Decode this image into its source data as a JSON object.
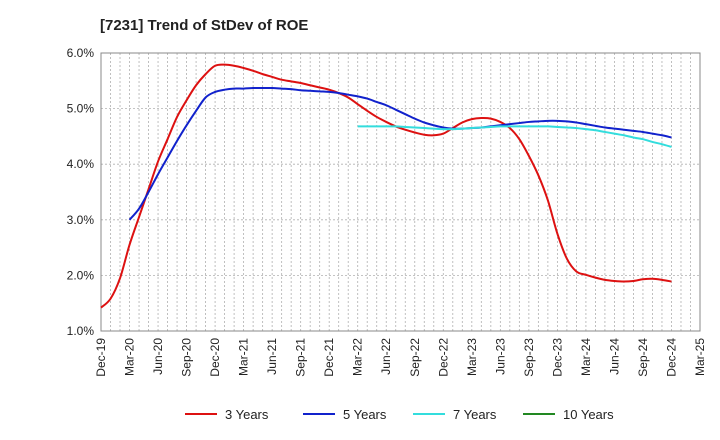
{
  "chart_data": {
    "type": "line",
    "title": "[7231]  Trend of StDev of ROE",
    "xlabel": "",
    "ylabel": "",
    "ylim": [
      1.0,
      6.0
    ],
    "y_ticks": [
      "1.0%",
      "2.0%",
      "3.0%",
      "4.0%",
      "5.0%",
      "6.0%"
    ],
    "y_tick_values": [
      1.0,
      2.0,
      3.0,
      4.0,
      5.0,
      6.0
    ],
    "x_ticks": [
      "Dec-19",
      "Mar-20",
      "Jun-20",
      "Sep-20",
      "Dec-20",
      "Mar-21",
      "Jun-21",
      "Sep-21",
      "Dec-21",
      "Mar-22",
      "Jun-22",
      "Sep-22",
      "Dec-22",
      "Mar-23",
      "Jun-23",
      "Sep-23",
      "Dec-23",
      "Mar-24",
      "Jun-24",
      "Sep-24",
      "Dec-24",
      "Mar-25"
    ],
    "grid": true,
    "legend_position": "bottom",
    "series": [
      {
        "name": "3 Years",
        "color": "#dd1111",
        "x": [
          "Dec-19",
          "Jan-20",
          "Feb-20",
          "Mar-20",
          "Apr-20",
          "May-20",
          "Jun-20",
          "Jul-20",
          "Aug-20",
          "Sep-20",
          "Oct-20",
          "Nov-20",
          "Dec-20",
          "Jan-21",
          "Feb-21",
          "Mar-21",
          "Apr-21",
          "May-21",
          "Jun-21",
          "Jul-21",
          "Aug-21",
          "Sep-21",
          "Oct-21",
          "Nov-21",
          "Dec-21",
          "Jan-22",
          "Feb-22",
          "Mar-22",
          "Apr-22",
          "May-22",
          "Jun-22",
          "Jul-22",
          "Aug-22",
          "Sep-22",
          "Oct-22",
          "Nov-22",
          "Dec-22",
          "Jan-23",
          "Feb-23",
          "Mar-23",
          "Apr-23",
          "May-23",
          "Jun-23",
          "Jul-23",
          "Aug-23",
          "Sep-23",
          "Oct-23",
          "Nov-23",
          "Dec-23",
          "Jan-24",
          "Feb-24",
          "Mar-24",
          "Apr-24",
          "May-24",
          "Jun-24",
          "Jul-24",
          "Aug-24",
          "Sep-24",
          "Oct-24",
          "Nov-24",
          "Dec-24"
        ],
        "values": [
          1.42,
          1.58,
          1.95,
          2.55,
          3.05,
          3.55,
          4.05,
          4.45,
          4.85,
          5.15,
          5.42,
          5.62,
          5.77,
          5.79,
          5.77,
          5.73,
          5.68,
          5.62,
          5.57,
          5.52,
          5.49,
          5.46,
          5.42,
          5.38,
          5.34,
          5.28,
          5.2,
          5.08,
          4.96,
          4.85,
          4.76,
          4.68,
          4.62,
          4.57,
          4.53,
          4.52,
          4.55,
          4.65,
          4.75,
          4.81,
          4.83,
          4.82,
          4.76,
          4.65,
          4.45,
          4.15,
          3.8,
          3.35,
          2.75,
          2.3,
          2.07,
          2.01,
          1.96,
          1.92,
          1.9,
          1.89,
          1.9,
          1.93,
          1.94,
          1.92,
          1.89
        ]
      },
      {
        "name": "5 Years",
        "color": "#1122cc",
        "x": [
          "Mar-20",
          "Apr-20",
          "May-20",
          "Jun-20",
          "Jul-20",
          "Aug-20",
          "Sep-20",
          "Oct-20",
          "Nov-20",
          "Dec-20",
          "Jan-21",
          "Feb-21",
          "Mar-21",
          "Apr-21",
          "May-21",
          "Jun-21",
          "Jul-21",
          "Aug-21",
          "Sep-21",
          "Oct-21",
          "Nov-21",
          "Dec-21",
          "Jan-22",
          "Feb-22",
          "Mar-22",
          "Apr-22",
          "May-22",
          "Jun-22",
          "Jul-22",
          "Aug-22",
          "Sep-22",
          "Oct-22",
          "Nov-22",
          "Dec-22",
          "Jan-23",
          "Feb-23",
          "Mar-23",
          "Apr-23",
          "May-23",
          "Jun-23",
          "Jul-23",
          "Aug-23",
          "Sep-23",
          "Oct-23",
          "Nov-23",
          "Dec-23",
          "Jan-24",
          "Feb-24",
          "Mar-24",
          "Apr-24",
          "May-24",
          "Jun-24",
          "Jul-24",
          "Aug-24",
          "Sep-24",
          "Oct-24",
          "Nov-24",
          "Dec-24"
        ],
        "values": [
          3.0,
          3.2,
          3.5,
          3.82,
          4.12,
          4.42,
          4.7,
          4.96,
          5.2,
          5.3,
          5.34,
          5.36,
          5.36,
          5.37,
          5.37,
          5.37,
          5.36,
          5.35,
          5.33,
          5.32,
          5.31,
          5.3,
          5.28,
          5.25,
          5.22,
          5.18,
          5.12,
          5.06,
          4.98,
          4.9,
          4.82,
          4.75,
          4.7,
          4.66,
          4.64,
          4.64,
          4.65,
          4.66,
          4.68,
          4.7,
          4.72,
          4.74,
          4.76,
          4.77,
          4.78,
          4.78,
          4.77,
          4.75,
          4.72,
          4.69,
          4.66,
          4.64,
          4.62,
          4.6,
          4.58,
          4.55,
          4.52,
          4.48
        ]
      },
      {
        "name": "7 Years",
        "color": "#33dddd",
        "x": [
          "Mar-22",
          "Apr-22",
          "May-22",
          "Jun-22",
          "Jul-22",
          "Aug-22",
          "Sep-22",
          "Oct-22",
          "Nov-22",
          "Dec-22",
          "Jan-23",
          "Feb-23",
          "Mar-23",
          "Apr-23",
          "May-23",
          "Jun-23",
          "Jul-23",
          "Aug-23",
          "Sep-23",
          "Oct-23",
          "Nov-23",
          "Dec-23",
          "Jan-24",
          "Feb-24",
          "Mar-24",
          "Apr-24",
          "May-24",
          "Jun-24",
          "Jul-24",
          "Aug-24",
          "Sep-24",
          "Oct-24",
          "Nov-24",
          "Dec-24"
        ],
        "values": [
          4.68,
          4.68,
          4.68,
          4.68,
          4.68,
          4.67,
          4.66,
          4.65,
          4.64,
          4.63,
          4.63,
          4.64,
          4.65,
          4.66,
          4.67,
          4.68,
          4.68,
          4.68,
          4.68,
          4.68,
          4.68,
          4.67,
          4.66,
          4.65,
          4.63,
          4.61,
          4.58,
          4.55,
          4.52,
          4.48,
          4.45,
          4.4,
          4.36,
          4.31
        ]
      },
      {
        "name": "10 Years",
        "color": "#228822",
        "x": [],
        "values": []
      }
    ]
  }
}
